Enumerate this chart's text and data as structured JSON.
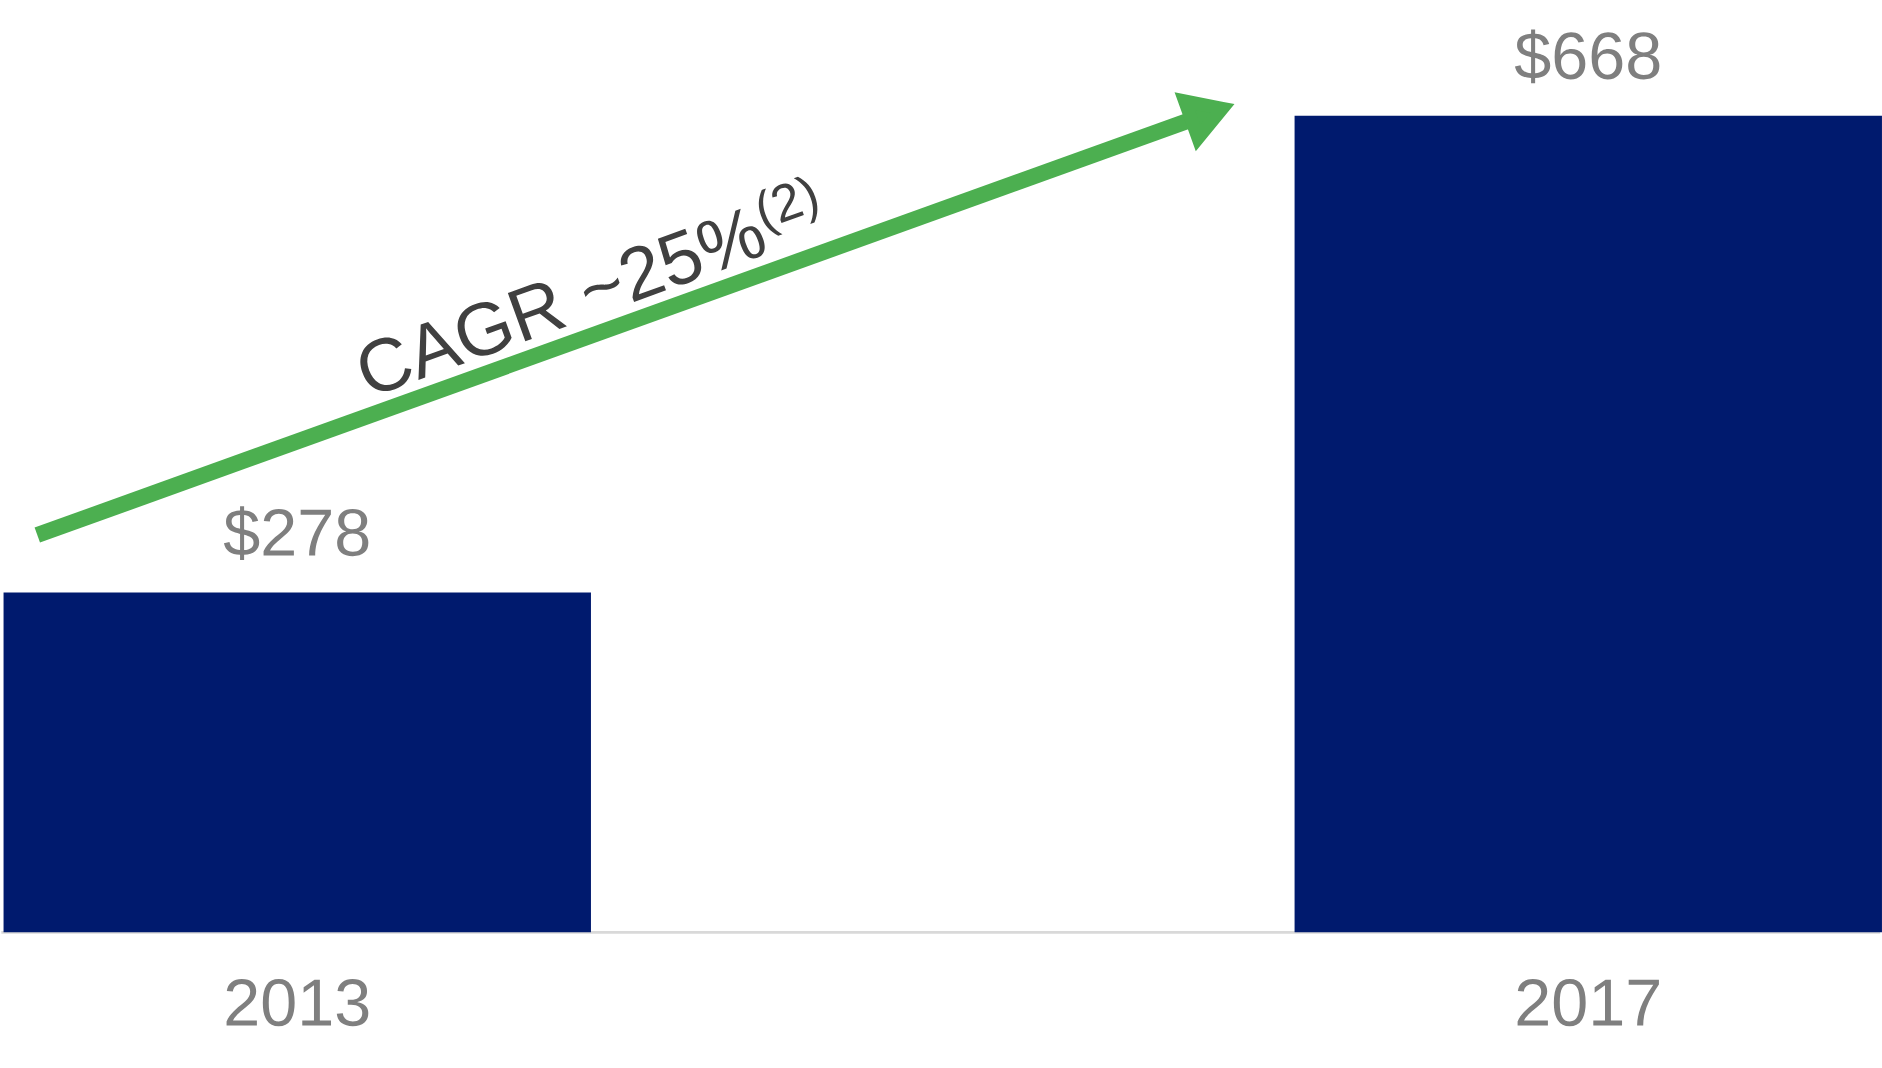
{
  "chart_data": {
    "type": "bar",
    "categories": [
      "2013",
      "2017"
    ],
    "values": [
      278,
      668
    ],
    "value_labels": [
      "$278",
      "$668"
    ],
    "color": "#001a6e",
    "annotations": [
      "CAGR ~25%$^{(2)}$"
    ]
  }
}
